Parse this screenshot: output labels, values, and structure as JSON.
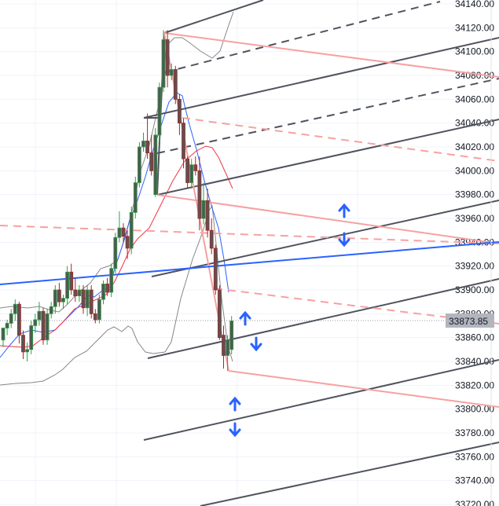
{
  "chart_data": {
    "type": "candlestick",
    "title": "",
    "ylim": [
      33720,
      34140
    ],
    "y_ticks": [
      "34140.00",
      "34120.00",
      "34100.00",
      "34080.00",
      "34060.00",
      "34040.00",
      "34020.00",
      "34000.00",
      "33980.00",
      "33960.00",
      "33940.00",
      "33920.00",
      "33900.00",
      "33880.00",
      "33860.00",
      "33840.00",
      "33820.00",
      "33800.00",
      "33780.00",
      "33760.00",
      "33740.00",
      "33720.00"
    ],
    "last_price": 33873.85,
    "last_price_label": "33873.85",
    "grid": true,
    "candles": [
      [
        33858,
        33866,
        33852,
        33868
      ],
      [
        33868,
        33875,
        33862,
        33872
      ],
      [
        33872,
        33884,
        33868,
        33880
      ],
      [
        33880,
        33892,
        33874,
        33888
      ],
      [
        33888,
        33890,
        33855,
        33862
      ],
      [
        33862,
        33866,
        33842,
        33848
      ],
      [
        33848,
        33856,
        33840,
        33850
      ],
      [
        33850,
        33874,
        33846,
        33870
      ],
      [
        33870,
        33880,
        33864,
        33875
      ],
      [
        33875,
        33890,
        33870,
        33882
      ],
      [
        33882,
        33885,
        33854,
        33858
      ],
      [
        33858,
        33884,
        33854,
        33880
      ],
      [
        33880,
        33890,
        33876,
        33886
      ],
      [
        33886,
        33904,
        33880,
        33900
      ],
      [
        33900,
        33906,
        33886,
        33890
      ],
      [
        33890,
        33896,
        33884,
        33893
      ],
      [
        33893,
        33920,
        33888,
        33915
      ],
      [
        33915,
        33922,
        33896,
        33900
      ],
      [
        33900,
        33910,
        33890,
        33895
      ],
      [
        33895,
        33904,
        33890,
        33900
      ],
      [
        33900,
        33904,
        33880,
        33885
      ],
      [
        33885,
        33904,
        33878,
        33900
      ],
      [
        33900,
        33904,
        33876,
        33880
      ],
      [
        33880,
        33884,
        33872,
        33875
      ],
      [
        33875,
        33896,
        33872,
        33892
      ],
      [
        33892,
        33908,
        33888,
        33905
      ],
      [
        33905,
        33910,
        33895,
        33898
      ],
      [
        33898,
        33922,
        33894,
        33918
      ],
      [
        33918,
        33948,
        33914,
        33944
      ],
      [
        33944,
        33966,
        33940,
        33952
      ],
      [
        33952,
        33956,
        33940,
        33945
      ],
      [
        33945,
        33950,
        33926,
        33935
      ],
      [
        33935,
        33970,
        33930,
        33965
      ],
      [
        33965,
        33995,
        33960,
        33990
      ],
      [
        33990,
        34024,
        33986,
        34020
      ],
      [
        34020,
        34032,
        34016,
        34025
      ],
      [
        34025,
        34048,
        34010,
        34015
      ],
      [
        34015,
        34030,
        33996,
        34000
      ],
      [
        33980,
        34036,
        33978,
        34030
      ],
      [
        34030,
        34074,
        34024,
        34070
      ],
      [
        34070,
        34118,
        34066,
        34110
      ],
      [
        34110,
        34118,
        34070,
        34080
      ],
      [
        34080,
        34090,
        34076,
        34085
      ],
      [
        34085,
        34088,
        34056,
        34060
      ],
      [
        34060,
        34064,
        34030,
        34040
      ],
      [
        34040,
        34044,
        34002,
        34010
      ],
      [
        34010,
        34012,
        33985,
        33990
      ],
      [
        33990,
        34010,
        33985,
        34005
      ],
      [
        34005,
        34012,
        33996,
        34000
      ],
      [
        34000,
        34012,
        33950,
        33960
      ],
      [
        33960,
        33990,
        33955,
        33975
      ],
      [
        33975,
        33985,
        33944,
        33950
      ],
      [
        33950,
        33960,
        33930,
        33935
      ],
      [
        33935,
        33938,
        33896,
        33900
      ],
      [
        33900,
        33904,
        33858,
        33860
      ],
      [
        33862,
        33870,
        33834,
        33845
      ],
      [
        33845,
        33862,
        33832,
        33858
      ],
      [
        33850,
        33878,
        33846,
        33874
      ]
    ],
    "colors": {
      "body": "#555555",
      "up_wick": "#26a641",
      "down_wick": "#b22222",
      "ma_fast": "#2962ff",
      "ma_slow": "#f23645",
      "bands": "#888888",
      "drawing_dark": "#50535e",
      "drawing_pink": "#f7a1a1",
      "trendline": "#2962ff",
      "arrows": "#2962ff"
    }
  }
}
